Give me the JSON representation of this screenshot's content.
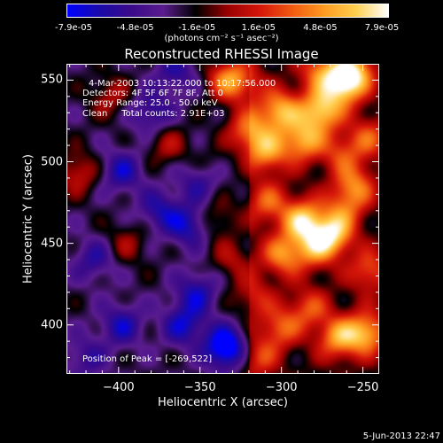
{
  "colorbar": {
    "ticks": [
      "-7.9e-05",
      "-4.8e-05",
      "-1.6e-05",
      "1.6e-05",
      "4.8e-05",
      "7.9e-05"
    ],
    "units": "(photons cm⁻² s⁻¹ asec⁻²)",
    "colors": [
      "#0000ff",
      "#1a0aa8",
      "#3a0a8a",
      "#5a1c8e",
      "#000000",
      "#9a0000",
      "#d4150a",
      "#f05a10",
      "#ff9a20",
      "#ffd050",
      "#ffffff"
    ]
  },
  "info": {
    "time_range": "4-Mar-2003 10:13:22.000 to 10:17:56.000",
    "detectors": "Detectors: 4F 5F 6F 7F 8F, Att 0",
    "energy": "Energy Range: 25.0 - 50.0 keV",
    "method": "Clean     Total counts: 2.91E+03",
    "peak": "Position of Peak = [-269,522]"
  },
  "timestamp": "5-Jun-2013 22:47",
  "chart_data": {
    "type": "heatmap",
    "title": "Reconstructed RHESSI Image",
    "xlabel": "Heliocentric X (arcsec)",
    "ylabel": "Heliocentric Y (arcsec)",
    "xlim": [
      -432,
      -240
    ],
    "ylim": [
      370,
      560
    ],
    "xticks": [
      -400,
      -350,
      -300,
      -250
    ],
    "yticks": [
      400,
      450,
      500,
      550
    ],
    "peak": [
      -269,
      522
    ],
    "blobs": [
      {
        "x": -276,
        "y": 531,
        "v": 0.95
      },
      {
        "x": -301,
        "y": 531,
        "v": 0.85
      },
      {
        "x": -321,
        "y": 519,
        "v": 0.7
      },
      {
        "x": -309,
        "y": 506,
        "v": 0.75
      },
      {
        "x": -287,
        "y": 513,
        "v": 0.8
      },
      {
        "x": -262,
        "y": 547,
        "v": 0.95
      },
      {
        "x": -255,
        "y": 556,
        "v": 0.75
      },
      {
        "x": -276,
        "y": 556,
        "v": 0.6
      },
      {
        "x": -334,
        "y": 551,
        "v": 0.6
      },
      {
        "x": -325,
        "y": 548,
        "v": 0.5
      },
      {
        "x": -287,
        "y": 464,
        "v": 0.95
      },
      {
        "x": -269,
        "y": 455,
        "v": 0.9
      },
      {
        "x": -299,
        "y": 443,
        "v": 0.7
      },
      {
        "x": -280,
        "y": 447,
        "v": 0.6
      },
      {
        "x": -309,
        "y": 475,
        "v": 0.55
      },
      {
        "x": -255,
        "y": 485,
        "v": 0.65
      },
      {
        "x": -263,
        "y": 505,
        "v": 0.45
      },
      {
        "x": -246,
        "y": 515,
        "v": 0.5
      },
      {
        "x": -265,
        "y": 392,
        "v": 0.75
      },
      {
        "x": -248,
        "y": 395,
        "v": 0.85
      },
      {
        "x": -283,
        "y": 410,
        "v": 0.5
      },
      {
        "x": -315,
        "y": 380,
        "v": 0.5
      },
      {
        "x": -301,
        "y": 398,
        "v": 0.55
      },
      {
        "x": -246,
        "y": 433,
        "v": 0.55
      },
      {
        "x": -330,
        "y": 440,
        "v": 0.35
      },
      {
        "x": -318,
        "y": 417,
        "v": 0.4
      },
      {
        "x": -405,
        "y": 540,
        "v": 0.35
      },
      {
        "x": -370,
        "y": 510,
        "v": 0.35
      },
      {
        "x": -425,
        "y": 493,
        "v": 0.45
      },
      {
        "x": -347,
        "y": 495,
        "v": 0.35
      },
      {
        "x": -395,
        "y": 450,
        "v": 0.3
      },
      {
        "x": -340,
        "y": 465,
        "v": 0.3
      },
      {
        "x": -262,
        "y": 470,
        "v": 0.45
      },
      {
        "x": -350,
        "y": 490,
        "v": -0.6
      },
      {
        "x": -357,
        "y": 461,
        "v": -0.55
      },
      {
        "x": -334,
        "y": 386,
        "v": -0.95
      },
      {
        "x": -352,
        "y": 420,
        "v": -0.5
      },
      {
        "x": -398,
        "y": 400,
        "v": -0.5
      },
      {
        "x": -415,
        "y": 440,
        "v": -0.4
      },
      {
        "x": -380,
        "y": 530,
        "v": -0.45
      },
      {
        "x": -398,
        "y": 494,
        "v": -0.5
      },
      {
        "x": -365,
        "y": 555,
        "v": -0.4
      },
      {
        "x": -420,
        "y": 380,
        "v": -0.35
      },
      {
        "x": -375,
        "y": 470,
        "v": -0.45
      },
      {
        "x": -360,
        "y": 400,
        "v": -0.55
      }
    ]
  }
}
